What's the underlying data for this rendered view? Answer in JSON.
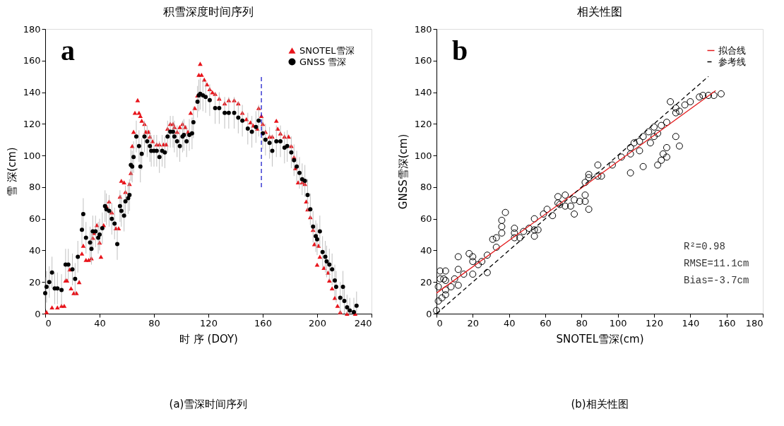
{
  "chart_data": [
    {
      "type": "scatter",
      "title": "积雪深度时间序列",
      "xlabel": "时 序 (DOY)",
      "ylabel": "雪 深(cm)",
      "xlim": [
        0,
        240
      ],
      "xticks": [
        0,
        40,
        80,
        120,
        160,
        200,
        240
      ],
      "ylim": [
        0,
        180
      ],
      "yticks": [
        0,
        20,
        40,
        60,
        80,
        100,
        120,
        140,
        160,
        180
      ],
      "legend": "top right",
      "grid": false,
      "annotations": [
        "a",
        "(a)雪深时间序列"
      ],
      "series": [
        {
          "name": "SNOTEL雪深",
          "color": "#e8141b",
          "marker": "triangle",
          "x": [
            1,
            5,
            9,
            12,
            14,
            15,
            16,
            18,
            19,
            21,
            23,
            25,
            27,
            28,
            30,
            32,
            34,
            35,
            36,
            38,
            40,
            41,
            43,
            45,
            47,
            49,
            52,
            54,
            55,
            56,
            58,
            59,
            62,
            63,
            64,
            65,
            66,
            68,
            69,
            70,
            71,
            73,
            74,
            76,
            77,
            79,
            82,
            84,
            87,
            89,
            90,
            92,
            94,
            95,
            97,
            99,
            101,
            103,
            105,
            107,
            110,
            112,
            113,
            114,
            115,
            117,
            119,
            121,
            123,
            125,
            128,
            132,
            135,
            139,
            142,
            145,
            148,
            151,
            153,
            156,
            157,
            159,
            160,
            162,
            165,
            167,
            170,
            171,
            173,
            176,
            179,
            181,
            183,
            184,
            186,
            189,
            191,
            192,
            193,
            195,
            197,
            198,
            200,
            201,
            202,
            205,
            208,
            209,
            211,
            213,
            215,
            217,
            222,
            228
          ],
          "values": [
            1,
            4,
            4,
            5,
            5,
            21,
            21,
            28,
            16,
            13,
            13,
            20,
            38,
            43,
            34,
            34,
            35,
            48,
            51,
            56,
            45,
            36,
            56,
            68,
            71,
            64,
            54,
            54,
            74,
            84,
            83,
            77,
            82,
            89,
            106,
            115,
            127,
            135,
            127,
            125,
            122,
            120,
            115,
            115,
            112,
            109,
            107,
            107,
            107,
            107,
            117,
            120,
            120,
            118,
            115,
            118,
            120,
            118,
            115,
            127,
            130,
            138,
            151,
            158,
            151,
            148,
            145,
            142,
            140,
            139,
            136,
            133,
            135,
            135,
            133,
            127,
            123,
            121,
            119,
            117,
            130,
            125,
            120,
            115,
            112,
            112,
            122,
            117,
            114,
            112,
            112,
            106,
            99,
            92,
            83,
            83,
            82,
            71,
            66,
            61,
            53,
            44,
            31,
            43,
            36,
            29,
            26,
            21,
            16,
            10,
            5,
            1,
            0,
            0
          ]
        },
        {
          "name": "GNSS 雪深",
          "color": "#000000",
          "marker": "circle",
          "x": [
            0,
            1,
            3,
            5,
            7,
            9,
            12,
            15,
            17,
            20,
            22,
            24,
            27,
            28,
            30,
            33,
            34,
            35,
            37,
            39,
            40,
            42,
            44,
            45,
            47,
            49,
            51,
            53,
            55,
            56,
            58,
            59,
            61,
            62,
            63,
            64,
            65,
            67,
            69,
            70,
            71,
            73,
            75,
            77,
            78,
            80,
            82,
            84,
            86,
            88,
            90,
            92,
            94,
            95,
            97,
            99,
            101,
            102,
            104,
            106,
            108,
            109,
            112,
            113,
            114,
            116,
            118,
            121,
            125,
            128,
            132,
            135,
            139,
            142,
            145,
            149,
            152,
            155,
            157,
            160,
            162,
            165,
            167,
            170,
            173,
            176,
            178,
            181,
            183,
            185,
            187,
            189,
            191,
            193,
            195,
            197,
            199,
            200,
            202,
            204,
            206,
            207,
            209,
            211,
            213,
            214,
            217,
            219,
            220,
            222,
            224,
            227,
            229
          ],
          "values": [
            13,
            17,
            20,
            26,
            16,
            16,
            15,
            31,
            31,
            28,
            22,
            36,
            53,
            63,
            48,
            45,
            41,
            52,
            52,
            48,
            50,
            54,
            68,
            66,
            65,
            60,
            57,
            44,
            68,
            65,
            62,
            71,
            73,
            75,
            94,
            93,
            99,
            112,
            106,
            93,
            101,
            112,
            109,
            106,
            103,
            103,
            103,
            99,
            103,
            102,
            112,
            115,
            115,
            112,
            109,
            106,
            112,
            113,
            109,
            113,
            114,
            121,
            134,
            138,
            139,
            138,
            137,
            135,
            130,
            130,
            127,
            127,
            127,
            124,
            122,
            117,
            115,
            118,
            122,
            114,
            110,
            108,
            103,
            109,
            109,
            105,
            106,
            102,
            97,
            93,
            89,
            85,
            84,
            75,
            66,
            55,
            49,
            47,
            52,
            39,
            36,
            33,
            31,
            28,
            21,
            17,
            10,
            17,
            8,
            4,
            2,
            1,
            5
          ],
          "errors": [
            10,
            10,
            10,
            10,
            10,
            10,
            10,
            10,
            10,
            10,
            10,
            10,
            10,
            10,
            10,
            10,
            10,
            10,
            10,
            10,
            10,
            10,
            10,
            10,
            10,
            10,
            10,
            10,
            10,
            10,
            10,
            10,
            10,
            10,
            10,
            10,
            10,
            10,
            10,
            10,
            10,
            10,
            10,
            10,
            10,
            10,
            10,
            10,
            10,
            10,
            10,
            10,
            10,
            10,
            10,
            10,
            10,
            10,
            10,
            10,
            10,
            10,
            10,
            10,
            10,
            10,
            10,
            10,
            10,
            10,
            10,
            10,
            10,
            10,
            10,
            10,
            10,
            10,
            10,
            10,
            10,
            10,
            10,
            10,
            10,
            10,
            10,
            10,
            10,
            10,
            10,
            10,
            10,
            10,
            10,
            10,
            10,
            10,
            10,
            10,
            10,
            10,
            10,
            10,
            10,
            10,
            10,
            10,
            [
              0,
              16
            ],
            [
              0,
              12
            ],
            [
              0,
              10
            ],
            [
              0,
              10
            ],
            [
              0,
              14
            ]
          ]
        },
        {
          "type": "line",
          "color": "#1f1fcc",
          "line_style": "dashed",
          "x": [
            159,
            159
          ],
          "values": [
            80,
            150
          ]
        }
      ]
    },
    {
      "type": "scatter",
      "title": "相关性图",
      "xlabel": "SNOTEL雪深(cm)",
      "ylabel": "GNSS雪深(cm)",
      "xlim": [
        0,
        180
      ],
      "xticks": [
        0,
        20,
        40,
        60,
        80,
        100,
        120,
        140,
        160,
        180
      ],
      "ylim": [
        0,
        180
      ],
      "yticks": [
        0,
        20,
        40,
        60,
        80,
        100,
        120,
        140,
        160,
        180
      ],
      "legend": "top right",
      "grid": false,
      "annotations": [
        "b",
        "R²=0.98",
        "RMSE=11.1cm",
        "Bias=-3.7cm",
        "(b)相关性图"
      ],
      "series": [
        {
          "color": "#000000",
          "marker": "circle",
          "x": [
            0,
            1,
            1,
            2,
            2,
            3,
            4,
            5,
            5,
            5,
            5,
            8,
            10,
            12,
            12,
            12,
            15,
            18,
            20,
            20,
            20,
            23,
            25,
            28,
            28,
            31,
            33,
            33,
            36,
            36,
            36,
            38,
            43,
            43,
            43,
            46,
            48,
            51,
            54,
            54,
            54,
            56,
            59,
            61,
            64,
            67,
            67,
            68,
            71,
            71,
            74,
            76,
            76,
            79,
            82,
            82,
            82,
            84,
            84,
            84,
            89,
            89,
            91,
            97,
            102,
            107,
            107,
            107,
            109,
            112,
            112,
            114,
            114,
            117,
            118,
            120,
            120,
            122,
            122,
            124,
            124,
            125,
            127,
            127,
            127,
            129,
            132,
            132,
            132,
            134,
            134,
            137,
            140,
            145,
            147,
            150,
            153,
            157
          ],
          "values": [
            2,
            8,
            17,
            22,
            27,
            10,
            22,
            27,
            21,
            12,
            15,
            17,
            22,
            36,
            28,
            18,
            25,
            38,
            36,
            33,
            25,
            31,
            33,
            37,
            26,
            47,
            42,
            48,
            59,
            55,
            51,
            64,
            54,
            51,
            48,
            48,
            52,
            54,
            60,
            53,
            49,
            53,
            63,
            66,
            62,
            74,
            70,
            69,
            75,
            68,
            68,
            72,
            63,
            71,
            83,
            75,
            71,
            88,
            86,
            66,
            94,
            87,
            87,
            94,
            99,
            89,
            101,
            105,
            108,
            103,
            109,
            93,
            112,
            115,
            108,
            118,
            112,
            114,
            94,
            119,
            97,
            101,
            105,
            99,
            121,
            134,
            112,
            127,
            130,
            106,
            128,
            132,
            134,
            137,
            138,
            138,
            138,
            139
          ]
        },
        {
          "type": "line",
          "name": "拟合线",
          "color": "#e31a1c",
          "line_style": "solid",
          "x": [
            0,
            154
          ],
          "values": [
            13,
            141
          ]
        },
        {
          "type": "line",
          "name": "参考线",
          "color": "#000000",
          "line_style": "dashed",
          "x": [
            0,
            150
          ],
          "values": [
            0,
            150
          ]
        }
      ]
    }
  ]
}
